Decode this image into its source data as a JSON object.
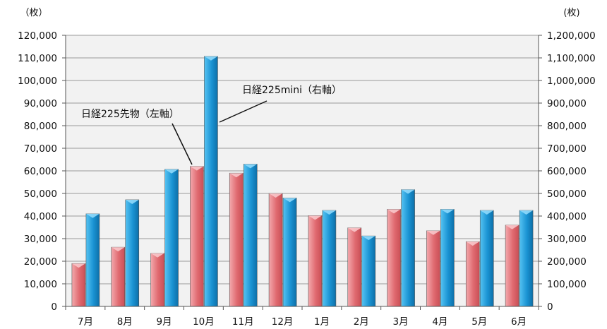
{
  "chart_data": {
    "type": "bar",
    "categories": [
      "7月",
      "8月",
      "9月",
      "10月",
      "11月",
      "12月",
      "1月",
      "2月",
      "3月",
      "4月",
      "5月",
      "6月"
    ],
    "series": [
      {
        "name": "日経225先物（左軸）",
        "axis": "left",
        "color": "#e8747a",
        "values": [
          19000,
          26200,
          23500,
          62000,
          59000,
          50000,
          40200,
          34800,
          43000,
          33500,
          28700,
          36000
        ]
      },
      {
        "name": "日経225mini（右軸）",
        "axis": "right",
        "color": "#1f9ad6",
        "values": [
          410000,
          472000,
          607000,
          1107000,
          630000,
          480000,
          425000,
          312000,
          517000,
          430000,
          425000,
          425000
        ]
      }
    ],
    "left_axis": {
      "unit_label": "（枚）",
      "ylim": [
        0,
        120000
      ],
      "ticks": [
        "0",
        "10,000",
        "20,000",
        "30,000",
        "40,000",
        "50,000",
        "60,000",
        "70,000",
        "80,000",
        "90,000",
        "100,000",
        "110,000",
        "120,000"
      ]
    },
    "right_axis": {
      "unit_label": "(枚)",
      "ylim": [
        0,
        1200000
      ],
      "ticks": [
        "0",
        "100,000",
        "200,000",
        "300,000",
        "400,000",
        "500,000",
        "600,000",
        "700,000",
        "800,000",
        "900,000",
        "1,000,000",
        "1,100,000",
        "1,200,000"
      ]
    },
    "grid": true,
    "annotations": [
      "日経225mini（右軸）",
      "日経225先物（左軸）"
    ]
  }
}
